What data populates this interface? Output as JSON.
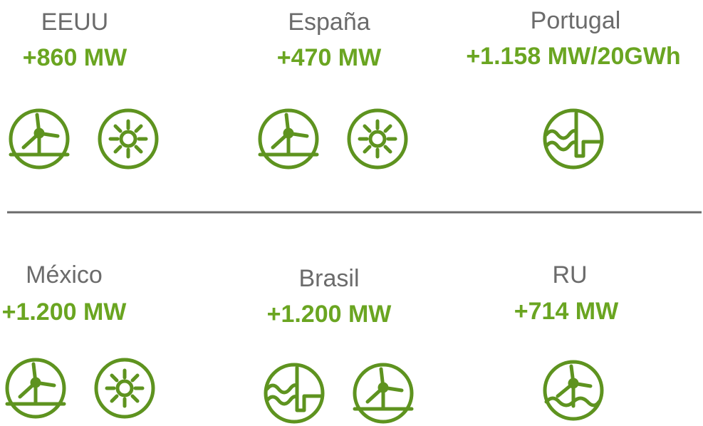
{
  "cells": [
    {
      "name": "EEUU",
      "value": "+860 MW"
    },
    {
      "name": "España",
      "value": "+470 MW"
    },
    {
      "name": "Portugal",
      "value": "+1.158 MW/20GWh"
    },
    {
      "name": "México",
      "value": "+1.200 MW"
    },
    {
      "name": "Brasil",
      "value": "+1.200 MW"
    },
    {
      "name": "RU",
      "value": "+714 MW"
    }
  ]
}
